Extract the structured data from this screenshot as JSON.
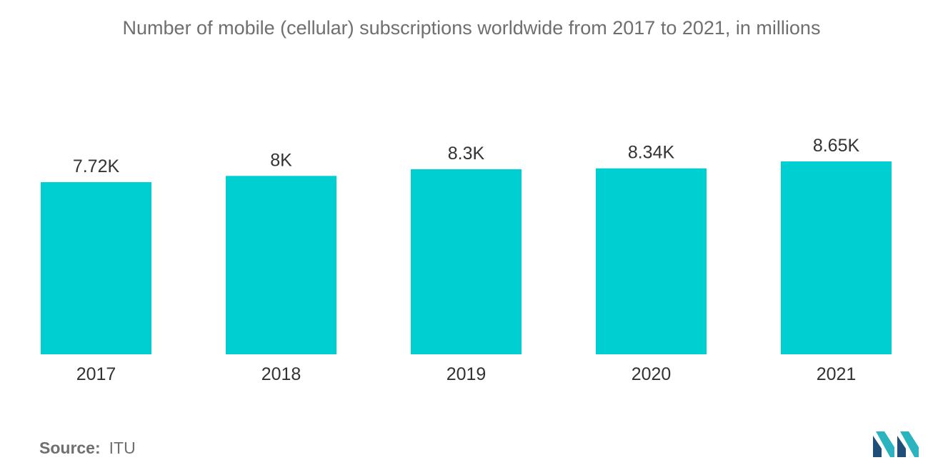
{
  "chart_data": {
    "type": "bar",
    "title": "Number of mobile (cellular) subscriptions worldwide from 2017 to 2021, in millions",
    "categories": [
      "2017",
      "2018",
      "2019",
      "2020",
      "2021"
    ],
    "values": [
      7720,
      8000,
      8300,
      8340,
      8650
    ],
    "value_labels": [
      "7.72K",
      "8K",
      "8.3K",
      "8.34K",
      "8.65K"
    ],
    "xlabel": "",
    "ylabel": "",
    "ylim": [
      0,
      8650
    ],
    "grid": false,
    "legend": "none",
    "bar_color": "#00cfd1"
  },
  "source": {
    "label": "Source:",
    "value": "ITU"
  },
  "logo": {
    "icon": "mordor-intelligence-logo-icon",
    "colors": [
      "#1f4e79",
      "#2bb3c0"
    ]
  }
}
